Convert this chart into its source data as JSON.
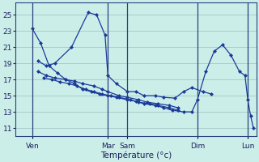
{
  "background_color": "#cceee8",
  "grid_color": "#aacccc",
  "line_color": "#1a3a9a",
  "marker_color": "#1a3a9a",
  "xlabel": "Température (°c)",
  "ylim": [
    10.0,
    26.5
  ],
  "yticks": [
    11,
    13,
    15,
    17,
    19,
    21,
    23,
    25
  ],
  "xlim": [
    -0.3,
    8.3
  ],
  "day_positions": [
    0.3,
    3.0,
    3.7,
    6.2,
    8.0
  ],
  "day_labels": [
    "Ven",
    "Mar",
    "Sam",
    "Dim",
    "Lun"
  ],
  "series": [
    [
      23.3,
      21.5,
      18.7,
      17.8,
      17.0,
      16.5,
      15.8,
      15.5,
      15.2,
      15.0,
      14.8,
      14.5,
      14.3,
      14.0,
      13.8,
      13.5,
      13.2,
      13.0,
      13.0,
      14.5,
      18.0,
      20.5,
      21.3,
      20.0,
      18.0,
      17.5,
      14.5,
      12.5,
      11.0
    ],
    [
      19.3,
      18.7,
      19.0,
      21.0,
      25.3,
      25.0,
      22.5,
      17.5,
      16.5,
      15.5,
      15.5,
      15.0,
      15.0,
      14.8,
      14.7,
      15.5,
      16.0,
      15.5,
      15.2
    ],
    [
      18.0,
      17.5,
      17.2,
      17.0,
      16.8,
      16.5,
      16.2,
      15.8,
      15.5,
      15.0,
      14.8,
      14.5,
      14.2,
      14.0,
      13.8,
      13.5
    ],
    [
      17.2,
      17.0,
      16.7,
      16.5,
      16.2,
      15.8,
      15.5,
      15.2,
      15.0,
      14.8,
      14.5,
      14.2,
      14.0,
      13.8,
      13.5,
      13.2
    ]
  ],
  "series_x": [
    [
      0.3,
      0.6,
      0.9,
      1.2,
      1.5,
      1.8,
      2.1,
      2.4,
      2.7,
      3.0,
      3.3,
      3.7,
      4.0,
      4.3,
      4.7,
      5.0,
      5.3,
      5.7,
      6.0,
      6.2,
      6.5,
      6.8,
      7.1,
      7.4,
      7.7,
      7.9,
      8.0,
      8.1,
      8.2
    ],
    [
      0.5,
      0.8,
      1.1,
      1.7,
      2.3,
      2.6,
      2.9,
      3.0,
      3.3,
      3.7,
      4.0,
      4.3,
      4.7,
      5.0,
      5.4,
      5.7,
      6.0,
      6.4,
      6.7
    ],
    [
      0.5,
      0.8,
      1.1,
      1.5,
      1.8,
      2.1,
      2.5,
      2.8,
      3.0,
      3.4,
      3.7,
      4.1,
      4.4,
      4.8,
      5.2,
      5.5
    ],
    [
      0.7,
      1.0,
      1.3,
      1.6,
      1.9,
      2.2,
      2.5,
      2.8,
      3.1,
      3.4,
      3.8,
      4.1,
      4.5,
      4.8,
      5.2,
      5.5
    ]
  ]
}
